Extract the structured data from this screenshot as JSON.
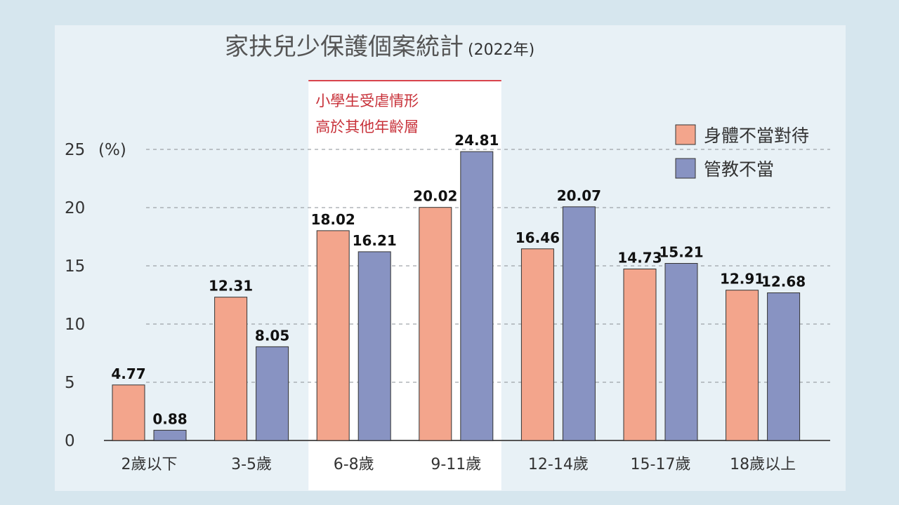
{
  "chart_data": {
    "type": "bar",
    "title": "家扶兒少保護個案統計",
    "subtitle": "(2022年)",
    "categories": [
      "2歲以下",
      "3-5歲",
      "6-8歲",
      "9-11歲",
      "12-14歲",
      "15-17歲",
      "18歲以上"
    ],
    "series": [
      {
        "name": "身體不當對待",
        "values": [
          4.77,
          12.31,
          18.02,
          20.02,
          16.46,
          14.73,
          12.91
        ]
      },
      {
        "name": "管教不當",
        "values": [
          0.88,
          8.05,
          16.21,
          24.81,
          20.07,
          15.21,
          12.68
        ]
      }
    ],
    "ylabel": "",
    "y_unit": "(%)",
    "ylim": [
      0,
      25
    ],
    "yticks": [
      "0",
      "5",
      "10",
      "15",
      "20",
      "25"
    ],
    "grid": true,
    "legend_position": "top-right",
    "colors": {
      "series1": "#f3a58c",
      "series2": "#8893c2",
      "highlight_text": "#c8323a",
      "highlight_line": "#d9434c"
    },
    "highlight": {
      "categories": [
        "6-8歲",
        "9-11歲"
      ],
      "lines": [
        "小學生受虐情形",
        "高於其他年齡層"
      ]
    }
  }
}
